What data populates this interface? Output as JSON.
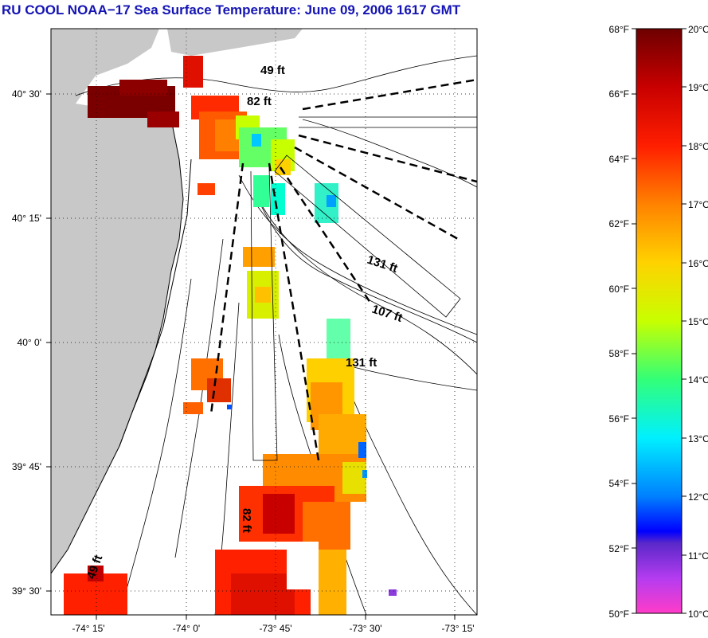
{
  "title": "RU COOL  NOAA−17  Sea Surface Temperature:  June 09, 2006 1617 GMT",
  "map": {
    "x_ticks": [
      "-74° 15'",
      "-74° 0'",
      "-73° 45'",
      "-73° 30'",
      "-73° 15'"
    ],
    "y_ticks": [
      "40° 30'",
      "40° 15'",
      "40° 0'",
      "39° 45'",
      "39° 30'"
    ],
    "depth_labels": [
      "49 ft",
      "82 ft",
      "131 ft",
      "107 ft",
      "131 ft",
      "82 ft",
      "49 ft"
    ]
  },
  "colorbar": {
    "fahrenheit": [
      "68°F",
      "66°F",
      "64°F",
      "62°F",
      "60°F",
      "58°F",
      "56°F",
      "54°F",
      "52°F",
      "50°F"
    ],
    "celsius": [
      "20°C",
      "19°C",
      "18°C",
      "17°C",
      "16°C",
      "15°C",
      "14°C",
      "13°C",
      "12°C",
      "11°C",
      "10°C"
    ]
  }
}
